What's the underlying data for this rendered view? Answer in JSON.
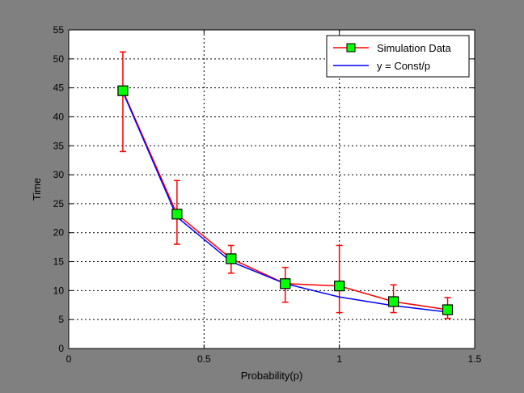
{
  "chart_data": {
    "type": "line",
    "xlabel": "Probability(p)",
    "ylabel": "Time",
    "xlim": [
      0,
      1.5
    ],
    "ylim": [
      0,
      55
    ],
    "xticks": [
      "0",
      "0.5",
      "1",
      "1.5"
    ],
    "yticks": [
      "0",
      "5",
      "10",
      "15",
      "20",
      "25",
      "30",
      "35",
      "40",
      "45",
      "50",
      "55"
    ],
    "grid": true,
    "legend_position": "top-right",
    "series": [
      {
        "name": "Simulation Data",
        "color": "#ff0000",
        "marker": "square",
        "marker_color": "#00ff00",
        "x": [
          0.2,
          0.4,
          0.6,
          0.8,
          1.0,
          1.2,
          1.4
        ],
        "y": [
          44.5,
          23.2,
          15.5,
          11.2,
          10.8,
          8.1,
          6.7
        ],
        "error_low": [
          34.0,
          18.0,
          13.0,
          8.0,
          6.2,
          6.2,
          5.2
        ],
        "error_high": [
          51.2,
          29.0,
          17.8,
          14.0,
          17.8,
          11.0,
          8.8
        ]
      },
      {
        "name": "y = Const/p",
        "color": "#0000ff",
        "x": [
          0.2,
          0.4,
          0.6,
          0.8,
          1.0,
          1.2,
          1.4
        ],
        "y": [
          44.3,
          22.7,
          15.0,
          11.2,
          8.9,
          7.4,
          6.3
        ]
      }
    ]
  }
}
